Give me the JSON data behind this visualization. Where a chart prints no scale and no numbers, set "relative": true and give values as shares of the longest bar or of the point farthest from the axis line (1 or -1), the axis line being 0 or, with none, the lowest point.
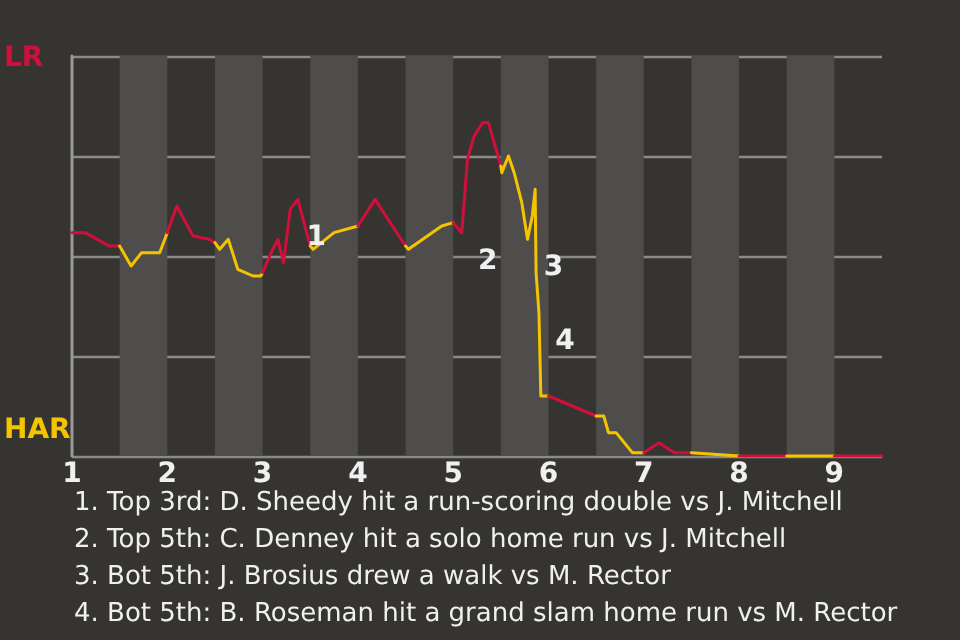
{
  "chart_data": {
    "type": "line",
    "relative": true,
    "xlim": [
      1,
      9.5
    ],
    "xticks": [
      1,
      2,
      3,
      4,
      5,
      6,
      7,
      8,
      9
    ],
    "grid": "y",
    "marker": "none",
    "line_style": "solid",
    "series": [
      {
        "color": "#d0103a",
        "x": [
          1,
          1.14,
          1.39,
          1.5
        ],
        "values": [
          0.67,
          0.67,
          0.63,
          0.63
        ]
      },
      {
        "color": "#f5c400",
        "x": [
          1.5,
          1.62,
          1.73,
          1.92,
          2
        ],
        "values": [
          0.63,
          0.57,
          0.61,
          0.61,
          0.67
        ]
      },
      {
        "color": "#d0103a",
        "x": [
          2,
          2.1,
          2.27,
          2.44,
          2.5
        ],
        "values": [
          0.67,
          0.75,
          0.66,
          0.65,
          0.64
        ]
      },
      {
        "color": "#f5c400",
        "x": [
          2.5,
          2.55,
          2.64,
          2.74,
          2.9,
          2.98,
          3
        ],
        "values": [
          0.64,
          0.62,
          0.65,
          0.56,
          0.54,
          0.54,
          0.55
        ]
      },
      {
        "color": "#d0103a",
        "x": [
          3,
          3.09,
          3.16,
          3.22,
          3.29,
          3.37,
          3.5
        ],
        "values": [
          0.55,
          0.61,
          0.65,
          0.58,
          0.74,
          0.77,
          0.63
        ]
      },
      {
        "color": "#f5c400",
        "x": [
          3.5,
          3.53,
          3.75,
          4
        ],
        "values": [
          0.63,
          0.62,
          0.67,
          0.69
        ]
      },
      {
        "color": "#d0103a",
        "x": [
          4,
          4.18,
          4.5
        ],
        "values": [
          0.69,
          0.77,
          0.63
        ]
      },
      {
        "color": "#f5c400",
        "x": [
          4.5,
          4.53,
          4.88,
          5
        ],
        "values": [
          0.63,
          0.62,
          0.69,
          0.7
        ]
      },
      {
        "color": "#d0103a",
        "x": [
          5,
          5.01,
          5.09,
          5.15,
          5.22,
          5.31,
          5.37,
          5.5
        ],
        "values": [
          0.7,
          0.7,
          0.67,
          0.89,
          0.96,
          1,
          1,
          0.87
        ]
      },
      {
        "color": "#f5c400",
        "x": [
          5.5,
          5.51,
          5.58,
          5.64,
          5.72,
          5.78,
          5.83,
          5.86,
          5.87,
          5.9,
          5.92,
          5.99,
          6
        ],
        "values": [
          0.87,
          0.85,
          0.9,
          0.85,
          0.76,
          0.65,
          0.72,
          0.8,
          0.55,
          0.43,
          0.18,
          0.18,
          0.18
        ]
      },
      {
        "color": "#d0103a",
        "x": [
          6,
          6.5
        ],
        "values": [
          0.18,
          0.12
        ]
      },
      {
        "color": "#f5c400",
        "x": [
          6.5,
          6.58,
          6.63,
          6.71,
          6.88,
          7
        ],
        "values": [
          0.12,
          0.12,
          0.07,
          0.07,
          0.01,
          0.01
        ]
      },
      {
        "color": "#d0103a",
        "x": [
          7,
          7.16,
          7.32,
          7.5
        ],
        "values": [
          0.01,
          0.04,
          0.01,
          0.01
        ]
      },
      {
        "color": "#f5c400",
        "x": [
          7.5,
          8
        ],
        "values": [
          0.01,
          0
        ]
      },
      {
        "color": "#d0103a",
        "x": [
          8,
          8.5
        ],
        "values": [
          0,
          0
        ]
      },
      {
        "color": "#f5c400",
        "x": [
          8.5,
          9
        ],
        "values": [
          0,
          0
        ]
      },
      {
        "color": "#d0103a",
        "x": [
          9,
          9.5
        ],
        "values": [
          0,
          0
        ]
      }
    ],
    "bands": [
      {
        "axis": "x",
        "from": 1.5,
        "to": 2,
        "color": "#4e4d4b"
      },
      {
        "axis": "x",
        "from": 2.5,
        "to": 3,
        "color": "#4e4d4b"
      },
      {
        "axis": "x",
        "from": 3.5,
        "to": 4,
        "color": "#4e4d4b"
      },
      {
        "axis": "x",
        "from": 4.5,
        "to": 5,
        "color": "#4e4d4b"
      },
      {
        "axis": "x",
        "from": 5.5,
        "to": 6,
        "color": "#4e4d4b"
      },
      {
        "axis": "x",
        "from": 6.5,
        "to": 7,
        "color": "#4e4d4b"
      },
      {
        "axis": "x",
        "from": 7.5,
        "to": 8,
        "color": "#4e4d4b"
      },
      {
        "axis": "x",
        "from": 8.5,
        "to": 9,
        "color": "#4e4d4b"
      }
    ],
    "annotations": [
      "LR",
      "HAR",
      {
        "text": "1",
        "x": 3.29,
        "y": 0.74
      },
      {
        "text": "2",
        "x": 5.09,
        "y": 0.67
      },
      {
        "text": "3",
        "x": 5.78,
        "y": 0.65
      },
      {
        "text": "4",
        "x": 5.9,
        "y": 0.43
      },
      "1. Top 3rd: D. Sheedy hit a run-scoring double vs J. Mitchell",
      "2. Top 5th: C. Denney hit a solo home run vs J. Mitchell",
      "3. Bot 5th: J. Brosius drew a walk vs M. Rector",
      "4. Bot 5th: B. Roseman hit a grand slam home run vs M. Rector"
    ]
  }
}
